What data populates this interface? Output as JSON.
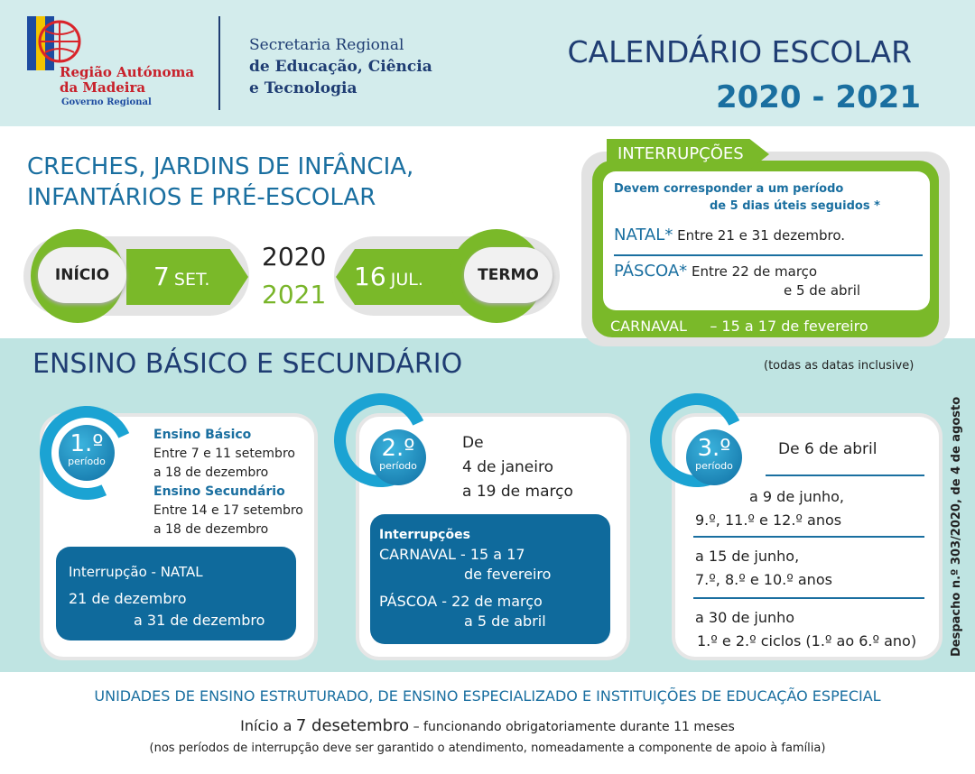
{
  "header": {
    "logo_lines": [
      "Região Autónoma",
      "da Madeira"
    ],
    "logo_sub": "Governo Regional",
    "secretaria": [
      "Secretaria Regional",
      "de Educação, Ciência",
      "e Tecnologia"
    ],
    "title": "CALENDÁRIO ESCOLAR",
    "year": "2020 - 2021"
  },
  "preschool": {
    "title": [
      "CRECHES, JARDINS DE INFÂNCIA,",
      "INFANTÁRIOS E PRÉ-ESCOLAR"
    ],
    "start_label": "INÍCIO",
    "start_day": "7",
    "start_month": "SET.",
    "year_start": "2020",
    "year_end": "2021",
    "end_day": "16",
    "end_month": "JUL.",
    "end_label": "TERMO"
  },
  "interruptions": {
    "title": "INTERRUPÇÕES",
    "note": [
      "Devem corresponder a um período",
      "de 5 dias úteis seguidos *"
    ],
    "natal_label": "NATAL*",
    "natal_text": "Entre 21 e 31 dezembro.",
    "pascoa_label": "PÁSCOA*",
    "pascoa_text": [
      "Entre 22 de março",
      "e 5 de abril"
    ],
    "carnaval_label": "CARNAVAL",
    "carnaval_text": "– 15 a 17 de fevereiro"
  },
  "basic": {
    "title": "ENSINO BÁSICO E SECUNDÁRIO",
    "note": "(todas as datas inclusive)",
    "side_note": "Despacho n.º 303/2020, de 4 de agosto",
    "periods": [
      {
        "number": "1.º",
        "label": "período",
        "heading1": "Ensino Básico",
        "lines1": [
          "Entre 7 e 11 setembro",
          "a 18 de dezembro"
        ],
        "heading2": "Ensino Secundário",
        "lines2": [
          "Entre 14 e 17 setembro",
          "a 18 de dezembro"
        ],
        "box_title": "Interrupção - NATAL",
        "box_lines": [
          "21 de dezembro",
          "a 31 de dezembro"
        ]
      },
      {
        "number": "2.º",
        "label": "período",
        "lines": [
          "De",
          "4 de janeiro",
          "a 19 de março"
        ],
        "box_title": "Interrupções",
        "box_lines": [
          "CARNAVAL - 15 a 17",
          "de fevereiro",
          "PÁSCOA - 22 de março",
          "a 5 de abril"
        ]
      },
      {
        "number": "3.º",
        "label": "período",
        "lines": [
          "De 6 de abril"
        ],
        "groups": [
          [
            "a 9 de junho,",
            "9.º, 11.º e 12.º anos"
          ],
          [
            "a 15 de junho,",
            "7.º, 8.º e 10.º anos"
          ],
          [
            "a 30 de junho",
            "1.º e 2.º ciclos (1.º ao 6.º ano)"
          ]
        ]
      }
    ]
  },
  "footer": {
    "title": "UNIDADES DE ENSINO ESTRUTURADO, DE ENSINO ESPECIALIZADO E INSTITUIÇÕES DE EDUCAÇÃO ESPECIAL",
    "parts": [
      "Início a",
      "7 de",
      "setembro",
      "– funcionando obrigatoriamente durante 11 meses"
    ],
    "note": "(nos períodos de interrupção deve ser garantido o atendimento, nomeadamente a componente de apoio à família)"
  }
}
